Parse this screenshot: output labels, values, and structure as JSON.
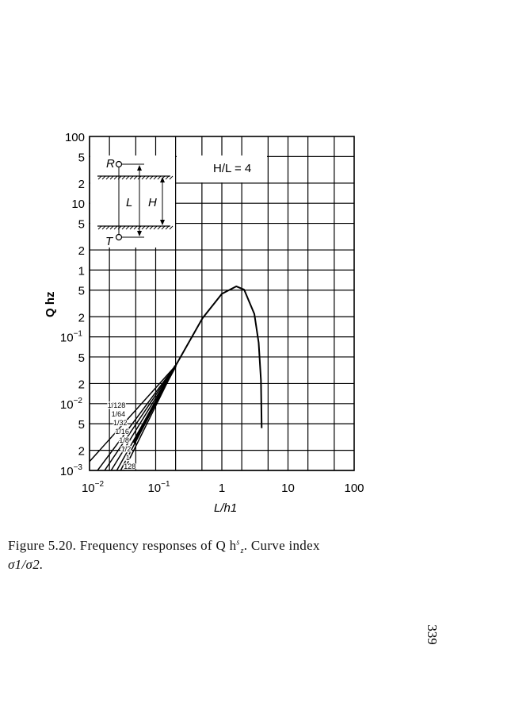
{
  "chart_data": {
    "type": "line",
    "title": "",
    "xlabel": "L/h1",
    "ylabel": "Q hz",
    "xscale": "log",
    "yscale": "log",
    "xlim": [
      0.01,
      100
    ],
    "ylim": [
      0.001,
      100
    ],
    "grid": true,
    "x_tick_labels": [
      {
        "value": 0.01,
        "base": "10",
        "exp": "−2"
      },
      {
        "value": 0.1,
        "base": "10",
        "exp": "−1"
      },
      {
        "value": 1,
        "base": "1",
        "exp": ""
      },
      {
        "value": 10,
        "base": "10",
        "exp": ""
      },
      {
        "value": 100,
        "base": "100",
        "exp": ""
      }
    ],
    "y_tick_labels": [
      {
        "value": 100,
        "base": "100",
        "exp": ""
      },
      {
        "value": 50,
        "base": "5",
        "exp": ""
      },
      {
        "value": 20,
        "base": "2",
        "exp": ""
      },
      {
        "value": 10,
        "base": "10",
        "exp": ""
      },
      {
        "value": 5,
        "base": "5",
        "exp": ""
      },
      {
        "value": 2,
        "base": "2",
        "exp": ""
      },
      {
        "value": 1,
        "base": "1",
        "exp": ""
      },
      {
        "value": 0.5,
        "base": "5",
        "exp": ""
      },
      {
        "value": 0.2,
        "base": "2",
        "exp": ""
      },
      {
        "value": 0.1,
        "base": "10",
        "exp": "−1"
      },
      {
        "value": 0.05,
        "base": "5",
        "exp": ""
      },
      {
        "value": 0.02,
        "base": "2",
        "exp": ""
      },
      {
        "value": 0.01,
        "base": "10",
        "exp": "−2"
      },
      {
        "value": 0.005,
        "base": "5",
        "exp": ""
      },
      {
        "value": 0.002,
        "base": "2",
        "exp": ""
      },
      {
        "value": 0.001,
        "base": "10",
        "exp": "−3"
      }
    ],
    "common_curve": {
      "x": [
        0.2,
        0.51,
        1.0,
        1.65,
        2.17,
        3.1,
        3.6,
        3.9,
        4.0
      ],
      "y": [
        0.037,
        0.19,
        0.44,
        0.57,
        0.51,
        0.22,
        0.082,
        0.0225,
        0.0043
      ]
    },
    "series": [
      {
        "name": "1/128",
        "x": [
          0.01,
          0.2
        ],
        "y": [
          0.00136,
          0.037
        ]
      },
      {
        "name": "1/64",
        "x": [
          0.0132,
          0.2
        ],
        "y": [
          0.001,
          0.037
        ]
      },
      {
        "name": "1/32",
        "x": [
          0.0169,
          0.2
        ],
        "y": [
          0.001,
          0.037
        ]
      },
      {
        "name": "1/16",
        "x": [
          0.0212,
          0.2
        ],
        "y": [
          0.001,
          0.037
        ]
      },
      {
        "name": "1/8",
        "x": [
          0.0258,
          0.2
        ],
        "y": [
          0.001,
          0.037
        ]
      },
      {
        "name": "1/2",
        "x": [
          0.0295,
          0.2
        ],
        "y": [
          0.001,
          0.037
        ]
      },
      {
        "name": "1",
        "x": [
          0.033,
          0.2
        ],
        "y": [
          0.001,
          0.037
        ]
      },
      {
        "name": "128",
        "x": [
          0.046,
          0.2
        ],
        "y": [
          0.0026,
          0.037
        ]
      }
    ],
    "annotations": {
      "ratio": "H/L = 4",
      "inset_R": "R",
      "inset_T": "T",
      "inset_L": "L",
      "inset_H": "H"
    }
  },
  "caption": {
    "line1": "Figure 5.20.   Frequency responses of Q h",
    "sup": "s",
    "sub": "z",
    "line1_end": ".   Curve index",
    "line2": "σ1/σ2."
  },
  "page_number": "339"
}
